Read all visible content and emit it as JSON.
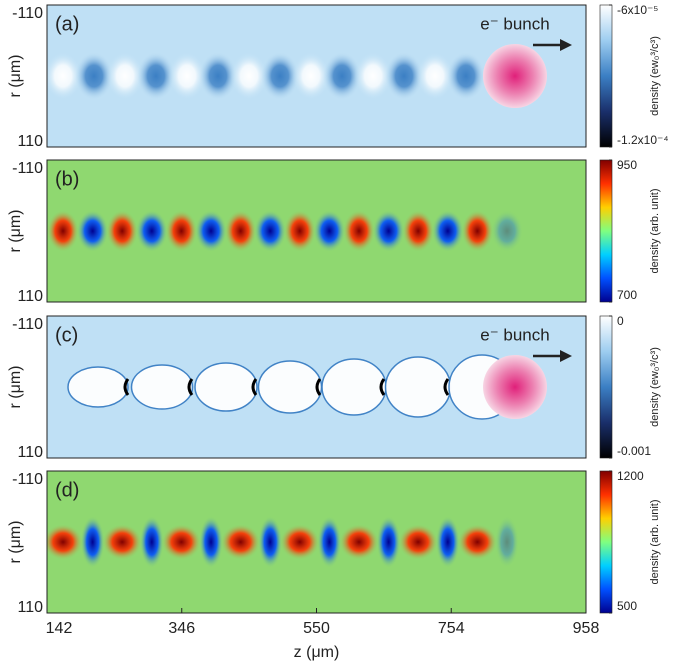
{
  "chart_data": [
    {
      "type": "heatmap",
      "label": "(a)",
      "ylabel": "r (μm)",
      "xlim": [
        142,
        958
      ],
      "ylim": [
        110,
        -110
      ],
      "yticks": [
        -110,
        110
      ],
      "background": "#bfe0f5",
      "annotation": "e⁻ bunch",
      "colorbar": {
        "label": "density (ew₀³/c³)",
        "lim": [
          -0.00012,
          -6e-05
        ],
        "ticks": [
          {
            "value": -6e-05,
            "label": "-6x10⁻⁵"
          },
          {
            "value": -0.00012,
            "label": "-1.2x10⁻⁴"
          }
        ],
        "colors": [
          "#000000",
          "#1a2f6b",
          "#3b7fc4",
          "#9dcdf0",
          "#ffffff"
        ]
      }
    },
    {
      "type": "heatmap",
      "label": "(b)",
      "ylabel": "r (μm)",
      "xlim": [
        142,
        958
      ],
      "ylim": [
        110,
        -110
      ],
      "yticks": [
        -110,
        110
      ],
      "background": "#8fd870",
      "colorbar": {
        "label": "density (arb. unit)",
        "lim": [
          700,
          950
        ],
        "ticks": [
          950,
          700
        ],
        "colors": [
          "#00008f",
          "#0050ff",
          "#00d0ff",
          "#80ff80",
          "#ffd000",
          "#ff3000",
          "#800000"
        ]
      }
    },
    {
      "type": "heatmap",
      "label": "(c)",
      "ylabel": "r (μm)",
      "xlim": [
        142,
        958
      ],
      "ylim": [
        110,
        -110
      ],
      "yticks": [
        -110,
        110
      ],
      "background": "#bfe0f5",
      "annotation": "e⁻ bunch",
      "colorbar": {
        "label": "density (ew₀³/c³)",
        "lim": [
          -0.001,
          0
        ],
        "ticks": [
          0,
          -0.001
        ],
        "colors": [
          "#000000",
          "#1a2f6b",
          "#3b7fc4",
          "#9dcdf0",
          "#ffffff"
        ]
      }
    },
    {
      "type": "heatmap",
      "label": "(d)",
      "ylabel": "r (μm)",
      "xlabel": "z (μm)",
      "xlim": [
        142,
        958
      ],
      "ylim": [
        110,
        -110
      ],
      "yticks": [
        -110,
        110
      ],
      "xticks": [
        142,
        346,
        550,
        754,
        958
      ],
      "background": "#8fd870",
      "colorbar": {
        "label": "density (arb. unit)",
        "lim": [
          500,
          1200
        ],
        "ticks": [
          1200,
          500
        ],
        "colors": [
          "#00008f",
          "#0050ff",
          "#00d0ff",
          "#80ff80",
          "#ffd000",
          "#ff3000",
          "#800000"
        ]
      }
    }
  ]
}
